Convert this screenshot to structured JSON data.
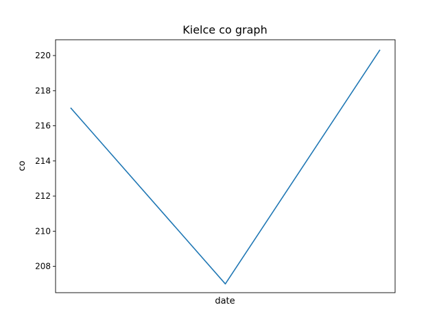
{
  "chart_data": {
    "type": "line",
    "title": "Kielce co graph",
    "xlabel": "date",
    "ylabel": "co",
    "x": [
      0,
      1,
      2
    ],
    "series": [
      {
        "values": [
          217.0,
          207.0,
          220.3
        ]
      }
    ],
    "ylim": [
      206.5,
      220.9
    ],
    "yticks": [
      208,
      210,
      212,
      214,
      216,
      218,
      220
    ],
    "xticks_shown": false,
    "grid": false,
    "legend": "none",
    "line_color": "#1f77b4"
  }
}
